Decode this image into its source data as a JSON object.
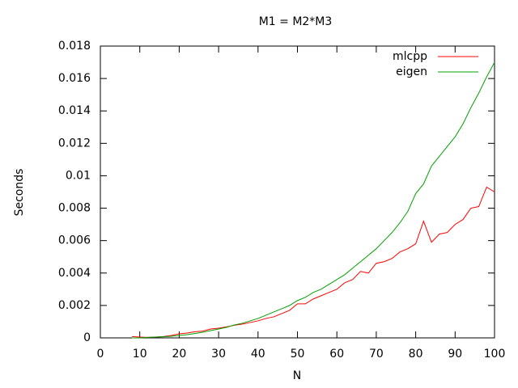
{
  "chart_data": {
    "type": "line",
    "title": "M1 = M2*M3",
    "x_label": "N",
    "y_label": "Seconds",
    "x": [
      8,
      10,
      12,
      14,
      16,
      18,
      20,
      22,
      24,
      26,
      28,
      30,
      32,
      34,
      36,
      38,
      40,
      42,
      44,
      46,
      48,
      50,
      52,
      54,
      56,
      58,
      60,
      62,
      64,
      66,
      68,
      70,
      72,
      74,
      76,
      78,
      80,
      82,
      84,
      86,
      88,
      90,
      92,
      94,
      96,
      98,
      100
    ],
    "series": [
      {
        "name": "mlcpp",
        "color": "#ff0000",
        "values": [
          8e-05,
          5e-05,
          3e-05,
          5e-05,
          8e-05,
          0.00015,
          0.00025,
          0.0003,
          0.00038,
          0.00042,
          0.00055,
          0.0006,
          0.00068,
          0.00078,
          0.00085,
          0.00095,
          0.00105,
          0.0012,
          0.0013,
          0.0015,
          0.0017,
          0.0021,
          0.0021,
          0.0024,
          0.0026,
          0.0028,
          0.003,
          0.0034,
          0.0036,
          0.0041,
          0.004,
          0.0046,
          0.0047,
          0.0049,
          0.0053,
          0.0055,
          0.0058,
          0.0072,
          0.0059,
          0.0064,
          0.0065,
          0.007,
          0.0073,
          0.008,
          0.0081,
          0.0093,
          0.009
        ]
      },
      {
        "name": "eigen",
        "color": "#00a000",
        "values": [
          0,
          0,
          3e-05,
          5e-05,
          7e-05,
          0.0001,
          0.00015,
          0.0002,
          0.00027,
          0.00035,
          0.00045,
          0.00055,
          0.00065,
          0.0008,
          0.0009,
          0.00105,
          0.0012,
          0.0014,
          0.0016,
          0.0018,
          0.002,
          0.0023,
          0.0025,
          0.0028,
          0.003,
          0.0033,
          0.0036,
          0.0039,
          0.0043,
          0.0047,
          0.0051,
          0.0055,
          0.006,
          0.0065,
          0.0071,
          0.0078,
          0.0089,
          0.0095,
          0.0106,
          0.0112,
          0.0118,
          0.0124,
          0.0132,
          0.0142,
          0.0151,
          0.0161,
          0.017
        ]
      }
    ],
    "xlim": [
      0,
      100
    ],
    "xticks": [
      0,
      10,
      20,
      30,
      40,
      50,
      60,
      70,
      80,
      90,
      100
    ],
    "ylim": [
      0,
      0.018
    ],
    "yticks": [
      0,
      0.002,
      0.004,
      0.006,
      0.008,
      0.01,
      0.012,
      0.014,
      0.016,
      0.018
    ],
    "legend": "top-right",
    "grid": false
  }
}
